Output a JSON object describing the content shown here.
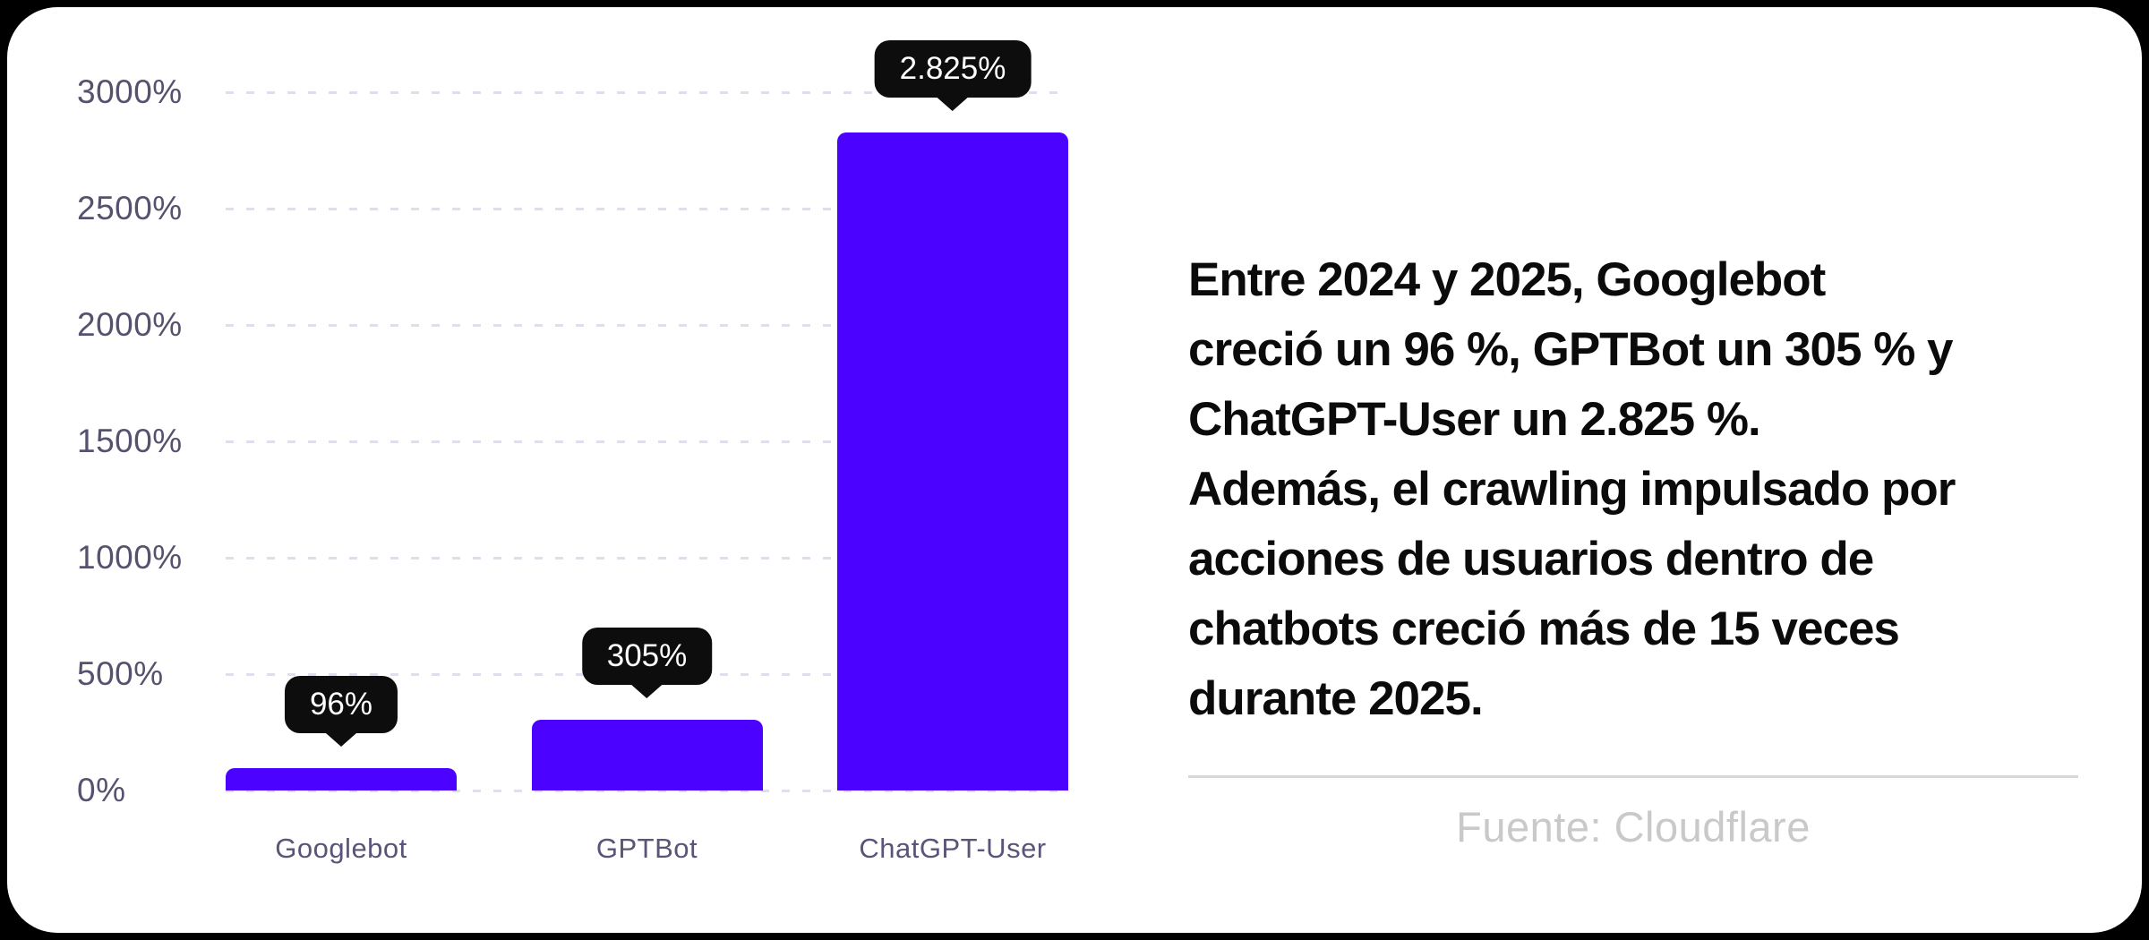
{
  "page": {
    "background_color": "#000000",
    "card_color": "#ffffff"
  },
  "chart_data": {
    "type": "bar",
    "title": "",
    "categories": [
      "Googlebot",
      "GPTBot",
      "ChatGPT-User"
    ],
    "values": [
      96,
      305,
      2825
    ],
    "value_labels": [
      "96%",
      "305%",
      "2.825%"
    ],
    "xlabel": "",
    "ylabel": "",
    "ylim": [
      0,
      3000
    ],
    "yticks": [
      3000,
      2500,
      2000,
      1500,
      1000,
      500,
      0
    ],
    "ytick_labels": [
      "3000%",
      "2500%",
      "2000%",
      "1500%",
      "1000%",
      "500%",
      "0%"
    ],
    "grid": "horizontal-dashed",
    "legend": "none",
    "colors": {
      "bar": "#4b02fe",
      "gridline": "#dfdeeb",
      "tick_label": "#57516f",
      "category_label": "#5a5478",
      "tooltip_bg": "#0d0d0d",
      "tooltip_text": "#ffffff"
    }
  },
  "summary": {
    "lines": [
      "Entre 2024 y 2025, Googlebot",
      "creció un 96 %, GPTBot un 305 % y",
      "ChatGPT-User un 2.825 %.",
      "Además, el crawling impulsado por",
      "acciones de usuarios dentro de",
      "chatbots creció más de 15 veces",
      "durante 2025."
    ],
    "text_color": "#0b0b0b"
  },
  "source": {
    "label": "Fuente: Cloudflare",
    "text_color": "#c9c9c9",
    "divider_color": "#d8d8d8"
  }
}
